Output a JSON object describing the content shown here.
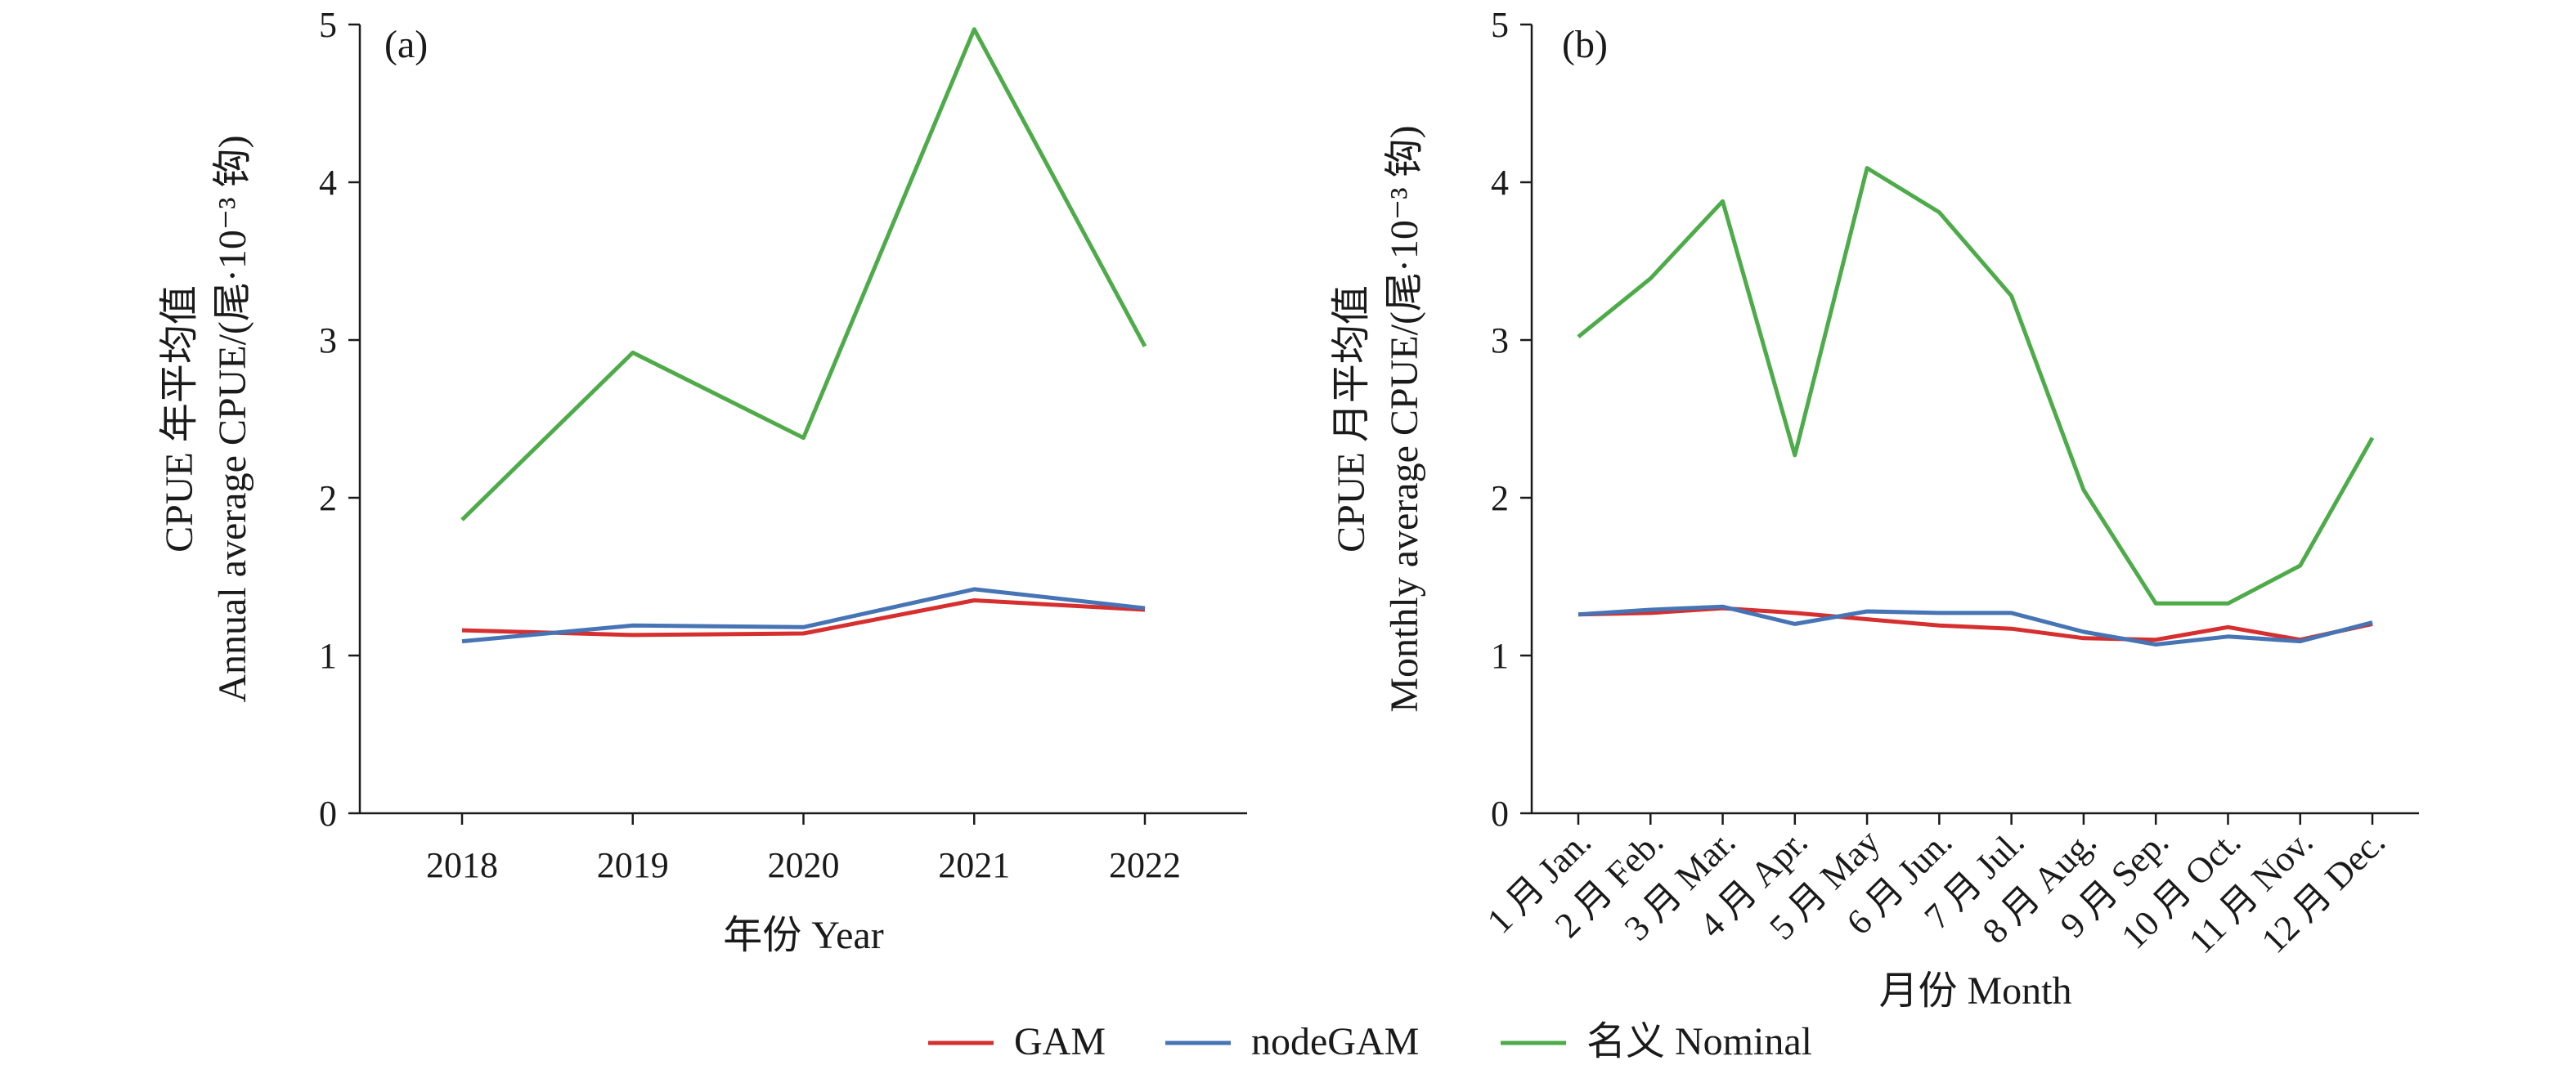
{
  "chart_data": [
    {
      "panel": "(a)",
      "type": "line",
      "categories": [
        "2018",
        "2019",
        "2020",
        "2021",
        "2022"
      ],
      "series": [
        {
          "name": "GAM",
          "values": [
            1.16,
            1.13,
            1.14,
            1.35,
            1.29
          ]
        },
        {
          "name": "nodeGAM",
          "values": [
            1.09,
            1.19,
            1.18,
            1.42,
            1.3
          ]
        },
        {
          "name": "名义 Nominal",
          "values": [
            1.86,
            2.92,
            2.38,
            4.97,
            2.96
          ]
        }
      ],
      "xlabel": "年份 Year",
      "ylabel_line1": "CPUE 年平均值",
      "ylabel_line2": "Annual average CPUE/(尾·10⁻³ 钩)",
      "ylim": [
        0,
        5
      ],
      "yticks": [
        "0",
        "1",
        "2",
        "3",
        "4",
        "5"
      ],
      "grid": false
    },
    {
      "panel": "(b)",
      "type": "line",
      "categories": [
        "1 月 Jan.",
        "2 月 Feb.",
        "3 月 Mar.",
        "4 月 Apr.",
        "5 月 May",
        "6 月 Jun.",
        "7 月 Jul.",
        "8 月 Aug.",
        "9 月 Sep.",
        "10 月 Oct.",
        "11 月 Nov.",
        "12 月 Dec."
      ],
      "series": [
        {
          "name": "GAM",
          "values": [
            1.26,
            1.27,
            1.3,
            1.27,
            1.23,
            1.19,
            1.17,
            1.11,
            1.1,
            1.18,
            1.1,
            1.2
          ]
        },
        {
          "name": "nodeGAM",
          "values": [
            1.26,
            1.29,
            1.31,
            1.2,
            1.28,
            1.27,
            1.27,
            1.15,
            1.07,
            1.12,
            1.09,
            1.21
          ]
        },
        {
          "name": "名义 Nominal",
          "values": [
            3.02,
            3.39,
            3.88,
            2.27,
            4.09,
            3.81,
            3.28,
            2.05,
            1.33,
            1.33,
            1.57,
            2.38
          ]
        }
      ],
      "xlabel": "月份 Month",
      "ylabel_line1": "CPUE 月平均值",
      "ylabel_line2": "Monthly average CPUE/(尾·10⁻³ 钩)",
      "ylim": [
        0,
        5
      ],
      "yticks": [
        "0",
        "1",
        "2",
        "3",
        "4",
        "5"
      ],
      "grid": false
    }
  ],
  "legend": {
    "placement": "bottom-center",
    "items": [
      {
        "label": "GAM",
        "color": "#d62f2f"
      },
      {
        "label": "nodeGAM",
        "color": "#4674b4"
      },
      {
        "label": "名义 Nominal",
        "color": "#4eab4a"
      }
    ]
  },
  "colors": {
    "GAM": "#d62f2f",
    "nodeGAM": "#4674b4",
    "名义 Nominal": "#4eab4a",
    "axis": "#1a1a1a"
  }
}
